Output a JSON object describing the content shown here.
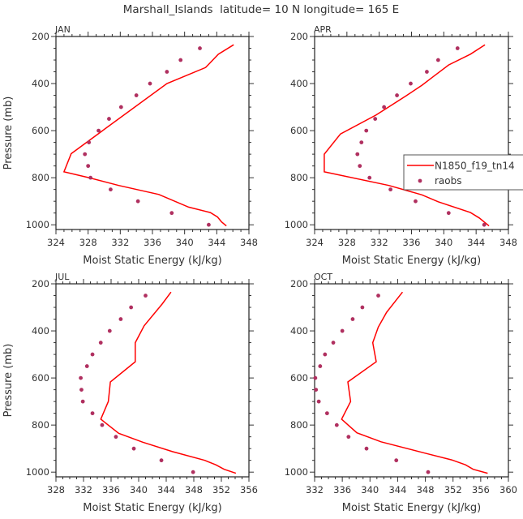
{
  "chart_data": {
    "title": "Marshall_Islands  latitude= 10 N longitude= 165 E",
    "type": "line",
    "legend": {
      "placement": "right-middle of APR panel",
      "entries": [
        "N1850_f19_tn14",
        "raobs"
      ]
    },
    "colors": {
      "model": "#ff0000",
      "obs": "#b03060",
      "axis": "#333333"
    },
    "panels": [
      {
        "label": "JAN",
        "xlabel": "Moist Static Energy (kJ/kg)",
        "ylabel": "Pressure (mb)",
        "xlim": [
          324,
          348
        ],
        "xticks": [
          324,
          328,
          332,
          336,
          340,
          344,
          348
        ],
        "ylim": [
          200,
          1020
        ],
        "yticks": [
          200,
          400,
          600,
          800,
          1000
        ],
        "model": {
          "name": "N1850_f19_tn14",
          "mse": [
            346.1,
            344.2,
            342.6,
            337.8,
            329.8,
            325.9,
            325.0,
            328.1,
            331.8,
            336.8,
            340.5,
            343.2,
            344.1,
            344.6,
            345.2
          ],
          "p": [
            235,
            275,
            332,
            400,
            600,
            698,
            775,
            800,
            833,
            871,
            925,
            948,
            967,
            988,
            1005
          ]
        },
        "obs": {
          "name": "raobs",
          "mse": [
            341.9,
            339.5,
            337.8,
            335.7,
            334.0,
            332.1,
            330.6,
            329.3,
            328.1,
            327.6,
            328.0,
            328.3,
            330.8,
            334.2,
            338.4,
            343.0
          ],
          "p": [
            250,
            300,
            350,
            400,
            450,
            500,
            550,
            600,
            650,
            700,
            750,
            800,
            850,
            900,
            950,
            1000
          ]
        }
      },
      {
        "label": "APR",
        "xlabel": "Moist Static Energy (kJ/kg)",
        "ylabel": "",
        "xlim": [
          324,
          348
        ],
        "xticks": [
          324,
          328,
          332,
          336,
          340,
          344,
          348
        ],
        "ylim": [
          200,
          1020
        ],
        "yticks": [
          200,
          400,
          600,
          800,
          1000
        ],
        "model": {
          "name": "N1850_f19_tn14",
          "mse": [
            345.1,
            343.3,
            340.6,
            338.6,
            337.3,
            335.3,
            331.6,
            327.2,
            325.2,
            325.2,
            333.2,
            337.3,
            339.3,
            343.3,
            344.4,
            345.6
          ],
          "p": [
            235,
            275,
            321,
            373,
            407,
            453,
            534,
            614,
            700,
            775,
            833,
            873,
            902,
            948,
            971,
            1005
          ]
        },
        "obs": {
          "name": "raobs",
          "mse": [
            341.7,
            339.3,
            337.9,
            335.9,
            334.2,
            332.6,
            331.5,
            330.4,
            329.8,
            329.3,
            329.6,
            330.8,
            333.4,
            336.5,
            340.6,
            345.0
          ],
          "p": [
            250,
            300,
            350,
            400,
            450,
            500,
            550,
            600,
            650,
            700,
            750,
            800,
            850,
            900,
            950,
            1000
          ]
        }
      },
      {
        "label": "JUL",
        "xlabel": "Moist Static Energy (kJ/kg)",
        "ylabel": "Pressure (mb)",
        "xlim": [
          328,
          356
        ],
        "xticks": [
          328,
          332,
          336,
          340,
          344,
          348,
          352,
          356
        ],
        "ylim": [
          200,
          1020
        ],
        "yticks": [
          200,
          400,
          600,
          800,
          1000
        ],
        "model": {
          "name": "N1850_f19_tn14",
          "mse": [
            344.7,
            343.4,
            340.8,
            339.5,
            339.5,
            335.9,
            335.6,
            334.5,
            337.1,
            340.6,
            344.9,
            349.6,
            351.2,
            352.4,
            354.1
          ],
          "p": [
            235,
            286,
            378,
            450,
            531,
            617,
            700,
            775,
            835,
            873,
            913,
            950,
            969,
            988,
            1005
          ]
        },
        "obs": {
          "name": "raobs",
          "mse": [
            341.0,
            338.9,
            337.4,
            335.8,
            334.5,
            333.3,
            332.5,
            331.6,
            331.7,
            331.9,
            333.3,
            334.7,
            336.7,
            339.3,
            343.3,
            347.9
          ],
          "p": [
            250,
            300,
            350,
            400,
            450,
            500,
            550,
            600,
            650,
            700,
            750,
            800,
            850,
            900,
            950,
            1000
          ]
        }
      },
      {
        "label": "OCT",
        "xlabel": "Moist Static Energy (kJ/kg)",
        "ylabel": "",
        "xlim": [
          332,
          360
        ],
        "xticks": [
          332,
          336,
          340,
          344,
          348,
          352,
          356,
          360
        ],
        "ylim": [
          200,
          1020
        ],
        "yticks": [
          200,
          400,
          600,
          800,
          1000
        ],
        "model": {
          "name": "N1850_f19_tn14",
          "mse": [
            344.7,
            342.4,
            341.2,
            340.4,
            340.9,
            336.8,
            337.2,
            335.9,
            338.1,
            341.6,
            347.9,
            351.8,
            353.8,
            354.9,
            357.0
          ],
          "p": [
            235,
            321,
            384,
            450,
            531,
            617,
            700,
            775,
            833,
            871,
            919,
            948,
            969,
            988,
            1005
          ]
        },
        "obs": {
          "name": "raobs",
          "mse": [
            341.2,
            338.9,
            337.5,
            336.0,
            334.7,
            333.5,
            332.8,
            332.1,
            332.2,
            332.6,
            333.8,
            335.2,
            336.9,
            339.5,
            343.8,
            348.4
          ],
          "p": [
            250,
            300,
            350,
            400,
            450,
            500,
            550,
            600,
            650,
            700,
            750,
            800,
            850,
            900,
            950,
            1000
          ]
        }
      }
    ]
  }
}
